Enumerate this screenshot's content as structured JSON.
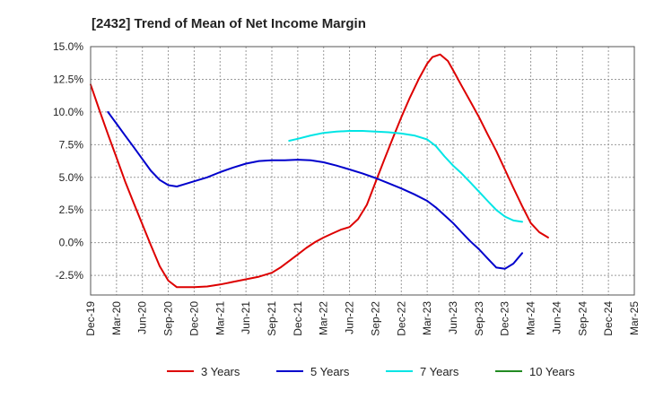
{
  "chart_data": {
    "type": "line",
    "title": "[2432]  Trend of Mean of Net Income Margin",
    "xlabel": "",
    "ylabel": "",
    "ylim": [
      -4.0,
      15.0
    ],
    "x_ticks": [
      "Dec-19",
      "Mar-20",
      "Jun-20",
      "Sep-20",
      "Dec-20",
      "Mar-21",
      "Jun-21",
      "Sep-21",
      "Dec-21",
      "Mar-22",
      "Jun-22",
      "Sep-22",
      "Dec-22",
      "Mar-23",
      "Jun-23",
      "Sep-23",
      "Dec-23",
      "Mar-24",
      "Jun-24",
      "Sep-24",
      "Dec-24",
      "Mar-25"
    ],
    "y_ticks": [
      15.0,
      12.5,
      10.0,
      7.5,
      5.0,
      2.5,
      0.0,
      -2.5
    ],
    "y_tick_labels": [
      "15.0%",
      "12.5%",
      "10.0%",
      "7.5%",
      "5.0%",
      "2.5%",
      "0.0%",
      "-2.5%"
    ],
    "grid": true,
    "legend_position": "bottom",
    "series": [
      {
        "name": "3 Years",
        "color": "#dd0000",
        "points": [
          [
            0,
            12.1
          ],
          [
            0.33,
            10.2
          ],
          [
            0.67,
            8.3
          ],
          [
            1,
            6.5
          ],
          [
            1.33,
            4.7
          ],
          [
            1.67,
            3.0
          ],
          [
            2,
            1.4
          ],
          [
            2.33,
            -0.2
          ],
          [
            2.67,
            -1.8
          ],
          [
            3,
            -2.9
          ],
          [
            3.33,
            -3.4
          ],
          [
            3.67,
            -3.4
          ],
          [
            4,
            -3.4
          ],
          [
            4.5,
            -3.35
          ],
          [
            5,
            -3.2
          ],
          [
            5.5,
            -3.0
          ],
          [
            6,
            -2.8
          ],
          [
            6.5,
            -2.6
          ],
          [
            7,
            -2.3
          ],
          [
            7.33,
            -1.9
          ],
          [
            7.67,
            -1.4
          ],
          [
            8,
            -0.9
          ],
          [
            8.33,
            -0.4
          ],
          [
            8.67,
            0.05
          ],
          [
            9,
            0.4
          ],
          [
            9.33,
            0.7
          ],
          [
            9.67,
            1.0
          ],
          [
            10,
            1.2
          ],
          [
            10.33,
            1.8
          ],
          [
            10.67,
            2.9
          ],
          [
            11,
            4.6
          ],
          [
            11.33,
            6.3
          ],
          [
            11.67,
            8.0
          ],
          [
            12,
            9.6
          ],
          [
            12.33,
            11.1
          ],
          [
            12.67,
            12.5
          ],
          [
            13,
            13.7
          ],
          [
            13.2,
            14.2
          ],
          [
            13.5,
            14.4
          ],
          [
            13.8,
            13.9
          ],
          [
            14,
            13.2
          ],
          [
            14.33,
            12.0
          ],
          [
            14.67,
            10.8
          ],
          [
            15,
            9.6
          ],
          [
            15.33,
            8.3
          ],
          [
            15.67,
            7.0
          ],
          [
            16,
            5.6
          ],
          [
            16.33,
            4.2
          ],
          [
            16.67,
            2.8
          ],
          [
            17,
            1.5
          ],
          [
            17.33,
            0.8
          ],
          [
            17.67,
            0.4
          ]
        ]
      },
      {
        "name": "5 Years",
        "color": "#0000cc",
        "points": [
          [
            0.67,
            10.0
          ],
          [
            1,
            9.1
          ],
          [
            1.33,
            8.2
          ],
          [
            1.67,
            7.3
          ],
          [
            2,
            6.4
          ],
          [
            2.33,
            5.5
          ],
          [
            2.67,
            4.8
          ],
          [
            3,
            4.4
          ],
          [
            3.33,
            4.3
          ],
          [
            3.67,
            4.5
          ],
          [
            4,
            4.7
          ],
          [
            4.5,
            5.0
          ],
          [
            5,
            5.4
          ],
          [
            5.5,
            5.75
          ],
          [
            6,
            6.05
          ],
          [
            6.5,
            6.25
          ],
          [
            7,
            6.3
          ],
          [
            7.5,
            6.3
          ],
          [
            8,
            6.35
          ],
          [
            8.5,
            6.3
          ],
          [
            9,
            6.15
          ],
          [
            9.5,
            5.9
          ],
          [
            10,
            5.6
          ],
          [
            10.5,
            5.3
          ],
          [
            11,
            4.95
          ],
          [
            11.5,
            4.55
          ],
          [
            12,
            4.15
          ],
          [
            12.5,
            3.7
          ],
          [
            13,
            3.2
          ],
          [
            13.33,
            2.7
          ],
          [
            13.67,
            2.1
          ],
          [
            14,
            1.5
          ],
          [
            14.33,
            0.8
          ],
          [
            14.67,
            0.1
          ],
          [
            15,
            -0.5
          ],
          [
            15.33,
            -1.2
          ],
          [
            15.67,
            -1.9
          ],
          [
            16,
            -2.0
          ],
          [
            16.33,
            -1.6
          ],
          [
            16.67,
            -0.8
          ]
        ]
      },
      {
        "name": "7 Years",
        "color": "#00e5e5",
        "points": [
          [
            7.67,
            7.8
          ],
          [
            8,
            7.95
          ],
          [
            8.5,
            8.2
          ],
          [
            9,
            8.4
          ],
          [
            9.5,
            8.5
          ],
          [
            10,
            8.55
          ],
          [
            10.5,
            8.55
          ],
          [
            11,
            8.5
          ],
          [
            11.5,
            8.45
          ],
          [
            12,
            8.35
          ],
          [
            12.5,
            8.2
          ],
          [
            13,
            7.9
          ],
          [
            13.33,
            7.4
          ],
          [
            13.67,
            6.6
          ],
          [
            14,
            5.9
          ],
          [
            14.33,
            5.3
          ],
          [
            14.67,
            4.6
          ],
          [
            15,
            3.9
          ],
          [
            15.33,
            3.2
          ],
          [
            15.67,
            2.5
          ],
          [
            16,
            2.0
          ],
          [
            16.33,
            1.7
          ],
          [
            16.67,
            1.6
          ]
        ]
      },
      {
        "name": "10 Years",
        "color": "#228b22",
        "points": []
      }
    ]
  }
}
